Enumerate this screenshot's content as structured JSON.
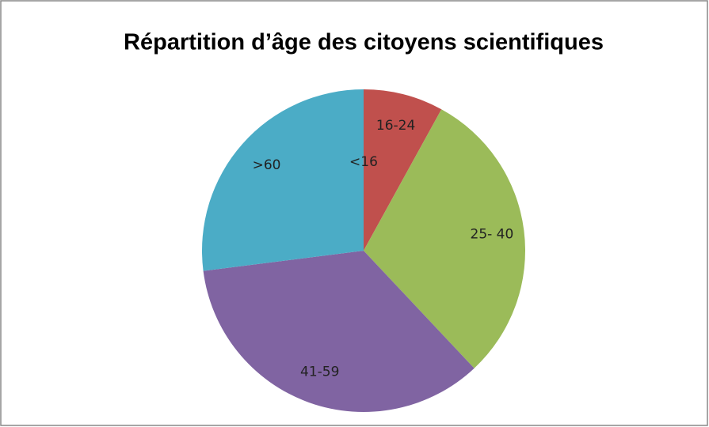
{
  "chart_data": {
    "type": "pie",
    "title": "Répartition d’âge des citoyens scientifiques",
    "categories": [
      "<16",
      "16-24",
      "25- 40",
      "41-59",
      ">60"
    ],
    "values": [
      0,
      8,
      30,
      35,
      27
    ],
    "colors": [
      "#4f81bd",
      "#c0504d",
      "#9bbb59",
      "#8064a2",
      "#4bacc6"
    ]
  }
}
